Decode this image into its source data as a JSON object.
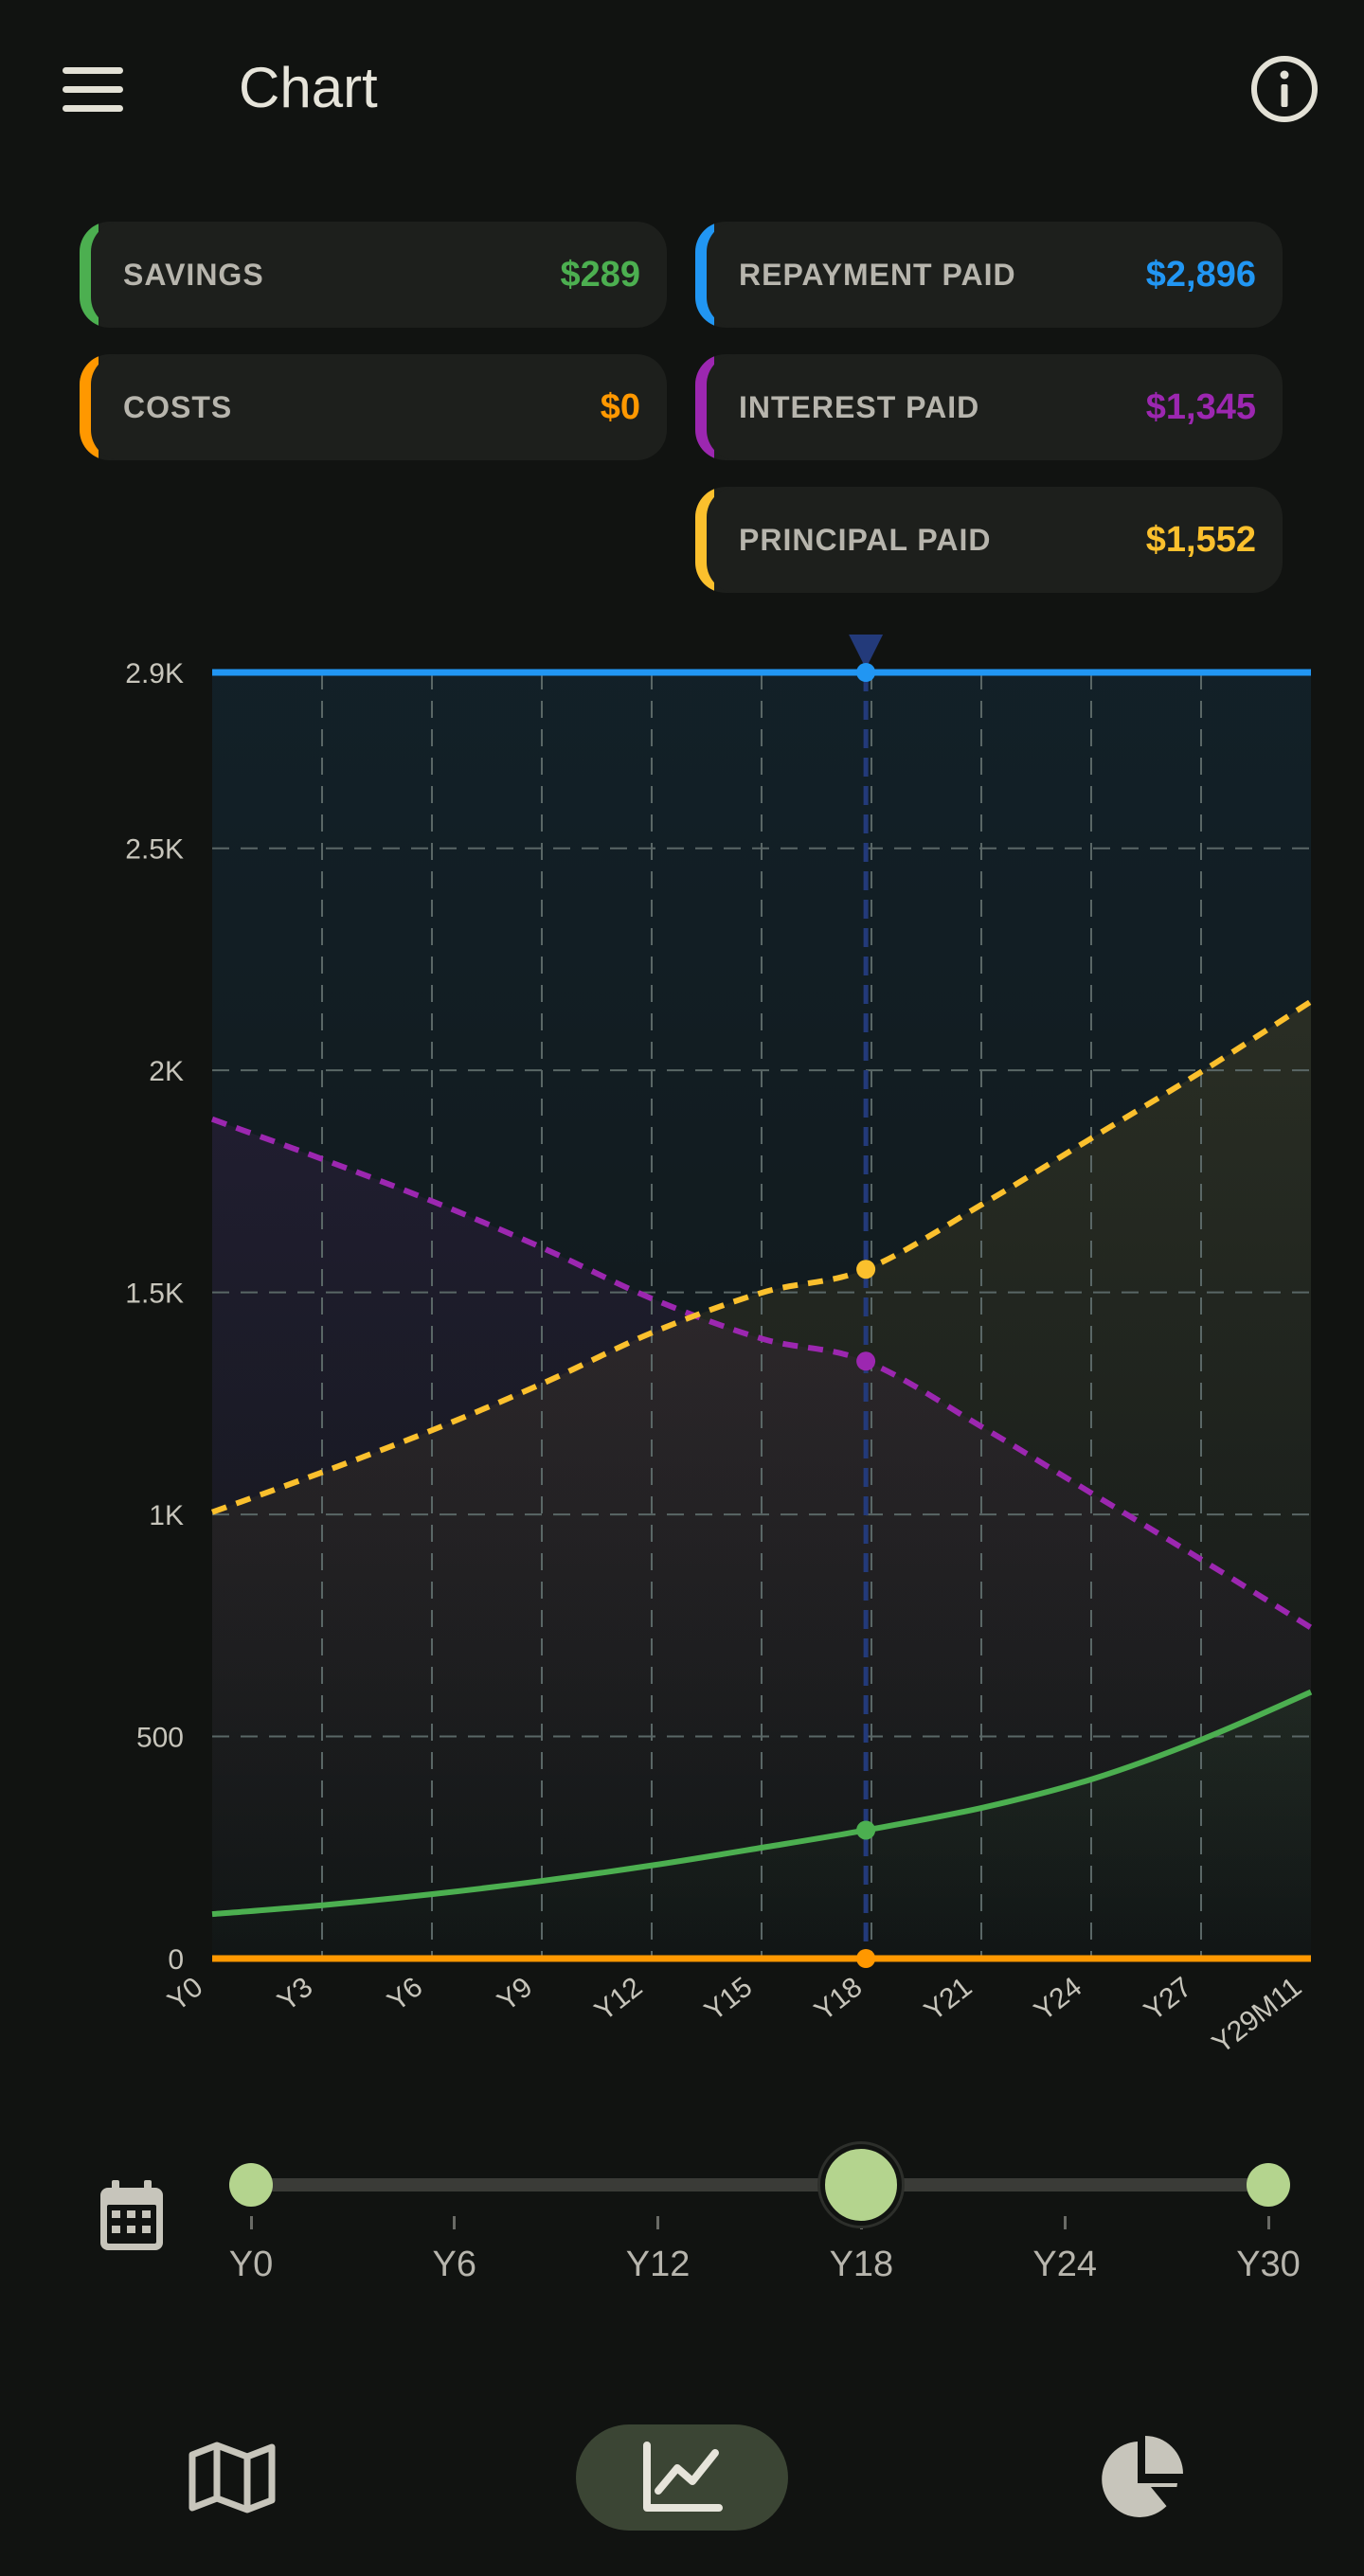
{
  "appbar": {
    "title": "Chart"
  },
  "cards": [
    {
      "label": "SAVINGS",
      "value": "$289",
      "color": "#4caf50"
    },
    {
      "label": "REPAYMENT PAID",
      "value": "$2,896",
      "color": "#2196f3"
    },
    {
      "label": "COSTS",
      "value": "$0",
      "color": "#ff9800"
    },
    {
      "label": "INTEREST PAID",
      "value": "$1,345",
      "color": "#9c27b0"
    },
    {
      "label": "PRINCIPAL PAID",
      "value": "$1,552",
      "color": "#fbc02d"
    }
  ],
  "chart_data": {
    "type": "line",
    "x_labels": [
      "Y0",
      "Y3",
      "Y6",
      "Y9",
      "Y12",
      "Y15",
      "Y18",
      "Y21",
      "Y24",
      "Y27",
      "Y29M11"
    ],
    "y_ticks": [
      "0",
      "500",
      "1K",
      "1.5K",
      "2K",
      "2.5K",
      "2.9K"
    ],
    "y_tick_values": [
      0,
      500,
      1000,
      1500,
      2000,
      2500,
      2896
    ],
    "ylim": [
      0,
      2896
    ],
    "xlim": [
      0,
      29.92
    ],
    "grid": true,
    "selected_x": 17.8,
    "series": [
      {
        "name": "Repayment paid",
        "color": "#2196f3",
        "style": "solid",
        "x": [
          0,
          29.92
        ],
        "values": [
          2896,
          2896
        ]
      },
      {
        "name": "Principal paid",
        "color": "#fbc02d",
        "style": "dashed",
        "x": [
          0,
          3,
          6,
          9,
          12,
          15,
          17.8,
          21,
          24,
          27,
          29.92
        ],
        "values": [
          1005,
          1095,
          1190,
          1295,
          1410,
          1500,
          1552,
          1700,
          1850,
          2000,
          2155
        ]
      },
      {
        "name": "Interest paid",
        "color": "#9c27b0",
        "style": "dashed",
        "x": [
          0,
          3,
          6,
          9,
          12,
          15,
          17.8,
          21,
          24,
          27,
          29.92
        ],
        "values": [
          1890,
          1800,
          1705,
          1600,
          1485,
          1395,
          1345,
          1195,
          1045,
          895,
          745
        ]
      },
      {
        "name": "Savings",
        "color": "#4caf50",
        "style": "solid",
        "x": [
          0,
          3,
          6,
          9,
          12,
          15,
          17.8,
          21,
          24,
          27,
          29.92
        ],
        "values": [
          100,
          120,
          145,
          175,
          210,
          250,
          289,
          340,
          405,
          495,
          600
        ]
      },
      {
        "name": "Costs",
        "color": "#ff9800",
        "style": "solid",
        "x": [
          0,
          29.92
        ],
        "values": [
          0,
          0
        ]
      }
    ]
  },
  "slider": {
    "labels": [
      "Y0",
      "Y6",
      "Y12",
      "Y18",
      "Y24",
      "Y30"
    ],
    "value": 18,
    "min": 0,
    "max": 30,
    "range_start": 0,
    "range_end": 30
  },
  "nav": {
    "items": [
      {
        "icon": "map-icon",
        "active": false
      },
      {
        "icon": "chart-icon",
        "active": true
      },
      {
        "icon": "pie-chart-icon",
        "active": false
      }
    ]
  }
}
